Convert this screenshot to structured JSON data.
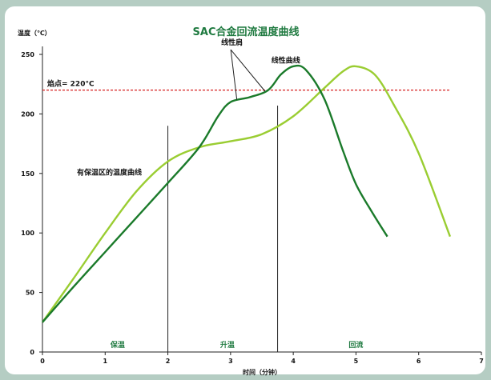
{
  "chart_data": {
    "type": "line",
    "title": "SAC合金回流温度曲线",
    "xlabel": "时间（分钟）",
    "ylabel": "温度（℃）",
    "xlim": [
      0,
      7
    ],
    "ylim": [
      0,
      250
    ],
    "xticks": [
      "0",
      "1",
      "2",
      "3",
      "4",
      "5",
      "6",
      "7"
    ],
    "yticks": [
      "0",
      "50",
      "100",
      "150",
      "200",
      "250"
    ],
    "grid": false,
    "series": [
      {
        "color": "#1a7a2a",
        "x": [
          0,
          0.5,
          1,
          1.5,
          2,
          2.5,
          2.8,
          3,
          3.3,
          3.6,
          3.8,
          4,
          4.2,
          4.5,
          4.8,
          5,
          5.25,
          5.5
        ],
        "y": [
          25,
          55,
          84,
          113,
          142,
          172,
          198,
          210,
          214,
          220,
          233,
          240,
          237,
          212,
          168,
          141,
          118,
          97
        ]
      },
      {
        "color": "#9acd32",
        "x": [
          0,
          0.5,
          1,
          1.5,
          2,
          2.5,
          3,
          3.5,
          4,
          4.5,
          4.8,
          5,
          5.3,
          5.6,
          6,
          6.5
        ],
        "y": [
          25,
          62,
          100,
          135,
          160,
          172,
          177,
          183,
          198,
          222,
          236,
          240,
          233,
          208,
          167,
          97
        ]
      }
    ],
    "reference_line": {
      "label": "焰点= 220°C",
      "y": 220,
      "color": "#d62020"
    },
    "vertical_lines": [
      {
        "x": 2.0,
        "y_top": 190
      },
      {
        "x": 3.75,
        "y_top": 207
      }
    ],
    "annotations": [
      {
        "text": "线性肩",
        "x": 2.85,
        "y": 258
      },
      {
        "text": "线性曲线",
        "x": 3.65,
        "y": 243
      },
      {
        "text": "有保温区的温度曲线",
        "x": 0.55,
        "y": 149
      }
    ],
    "phases": [
      {
        "label": "保温",
        "x": 1.2
      },
      {
        "label": "升温",
        "x": 2.95
      },
      {
        "label": "回流",
        "x": 5.0
      }
    ]
  }
}
